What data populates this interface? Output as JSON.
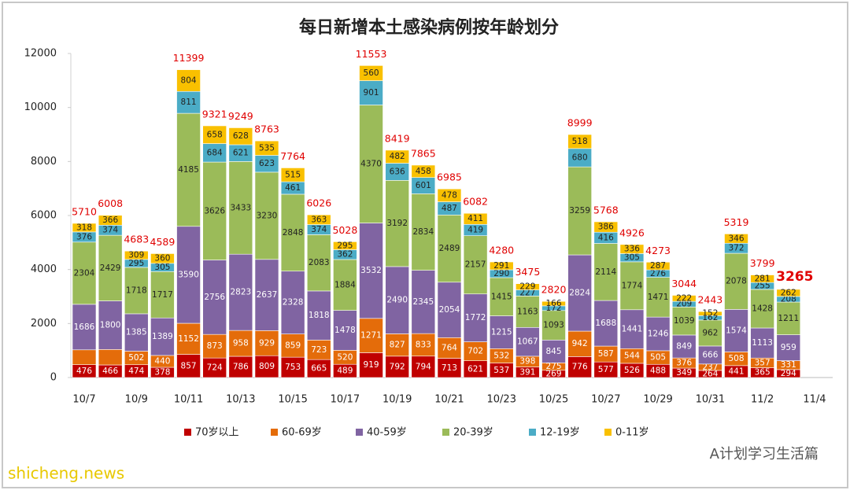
{
  "chart_data": {
    "type": "stacked_bar",
    "title": "每日新增本土感染病例按年龄划分",
    "categories": [
      "10/7",
      null,
      "10/9",
      null,
      "10/11",
      null,
      "10/13",
      null,
      "10/15",
      null,
      "10/17",
      null,
      "10/19",
      null,
      "10/21",
      null,
      "10/23",
      null,
      "10/25",
      null,
      "10/27",
      null,
      "10/29",
      null,
      "10/31",
      null,
      "11/2",
      null,
      "11/4"
    ],
    "series": [
      {
        "name": "70岁以上",
        "color": "#c00000",
        "values": [
          476,
          466,
          474,
          378,
          857,
          724,
          786,
          809,
          753,
          665,
          489,
          919,
          792,
          794,
          713,
          621,
          537,
          391,
          269,
          776,
          577,
          526,
          488,
          349,
          264,
          441,
          365,
          294,
          null
        ]
      },
      {
        "name": "60-69岁",
        "color": "#e46c0a",
        "values": [
          550,
          573,
          502,
          440,
          1152,
          873,
          958,
          929,
          859,
          723,
          520,
          1271,
          827,
          833,
          764,
          702,
          532,
          398,
          275,
          942,
          587,
          544,
          505,
          376,
          237,
          508,
          357,
          331,
          null
        ],
        "value_labels": [
          null,
          null,
          "502",
          "440",
          "1152",
          "873",
          "958",
          "929",
          "859",
          "723",
          "520",
          "1271",
          "827",
          "833",
          "764",
          "702",
          "532",
          "398",
          "275",
          "942",
          "587",
          "544",
          "505",
          "376",
          "237",
          "508",
          "357",
          "331",
          null
        ]
      },
      {
        "name": "40-59岁",
        "color": "#8064a2",
        "values": [
          1686,
          1800,
          1385,
          1389,
          3590,
          2756,
          2823,
          2637,
          2328,
          1818,
          1478,
          3532,
          2490,
          2345,
          2054,
          1772,
          1215,
          1067,
          845,
          2824,
          1688,
          1441,
          1246,
          849,
          666,
          1574,
          1113,
          959,
          null
        ]
      },
      {
        "name": "20-39岁",
        "color": "#9bbb59",
        "values": [
          2304,
          2429,
          1718,
          1717,
          4185,
          3626,
          3433,
          3230,
          2848,
          2083,
          1884,
          4370,
          3192,
          2834,
          2489,
          2157,
          1415,
          1163,
          1093,
          3259,
          2114,
          1774,
          1471,
          1039,
          962,
          2078,
          1428,
          1211,
          null
        ]
      },
      {
        "name": "12-19岁",
        "color": "#4bacc6",
        "values": [
          376,
          374,
          295,
          305,
          811,
          684,
          621,
          623,
          461,
          374,
          362,
          901,
          636,
          601,
          487,
          419,
          290,
          227,
          172,
          680,
          416,
          305,
          276,
          209,
          162,
          372,
          255,
          208,
          null
        ]
      },
      {
        "name": "0-11岁",
        "color": "#f9c000",
        "values": [
          318,
          366,
          309,
          360,
          804,
          658,
          628,
          535,
          515,
          363,
          295,
          560,
          482,
          458,
          478,
          411,
          291,
          229,
          166,
          518,
          386,
          336,
          287,
          222,
          152,
          346,
          281,
          262,
          null
        ]
      }
    ],
    "totals": [
      5710,
      6008,
      4683,
      4589,
      11399,
      9321,
      9249,
      8763,
      7764,
      6026,
      5028,
      11553,
      8419,
      7865,
      6985,
      6082,
      4280,
      3475,
      2820,
      8999,
      5768,
      4926,
      4273,
      3044,
      2443,
      5319,
      3799,
      3265,
      null
    ],
    "ylim": [
      0,
      12000
    ],
    "yticks": [
      0,
      2000,
      4000,
      6000,
      8000,
      10000,
      12000
    ],
    "grid": false,
    "legend": "bottom",
    "watermarks": [
      "A计划学习生活篇",
      "shicheng.news"
    ]
  }
}
